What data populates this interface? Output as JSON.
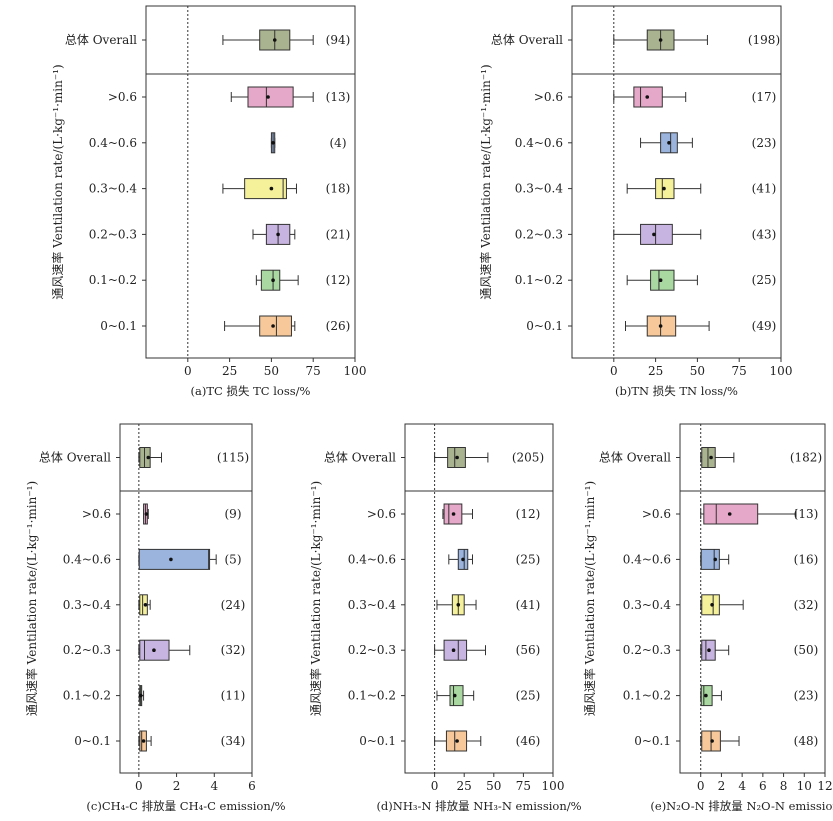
{
  "chart_data": [
    {
      "panel": "a",
      "type": "box",
      "xlabel": "(a)TC 损失 TC loss/%",
      "ylabel": "通风速率 Ventilation rate/(L·kg⁻¹·min⁻¹)",
      "xlim": [
        -25,
        100
      ],
      "xticks": [
        "0",
        "25",
        "50",
        "75",
        "100"
      ],
      "xtick_values": [
        0,
        25,
        50,
        75,
        100
      ],
      "reference_line": 0,
      "categories": [
        "总体 Overall",
        ">0.6",
        "0.4~0.6",
        "0.3~0.4",
        "0.2~0.3",
        "0.1~0.2",
        "0~0.1"
      ],
      "boxes": [
        {
          "q1": 43,
          "median": 52,
          "q3": 61,
          "whisker_low": 21,
          "whisker_high": 75,
          "mean": 52,
          "n": "(94)",
          "color": "#a9b38f"
        },
        {
          "q1": 36,
          "median": 47,
          "q3": 63,
          "whisker_low": 26,
          "whisker_high": 75,
          "mean": 48,
          "n": "(13)",
          "color": "#e6a8c8"
        },
        {
          "q1": 50,
          "median": 51,
          "q3": 52,
          "whisker_low": 50,
          "whisker_high": 52,
          "mean": 51,
          "n": "(4)",
          "color": "#9ab4de"
        },
        {
          "q1": 34,
          "median": 57,
          "q3": 59,
          "whisker_low": 21,
          "whisker_high": 65,
          "mean": 50,
          "n": "(18)",
          "color": "#f5f09a"
        },
        {
          "q1": 47,
          "median": 54,
          "q3": 61,
          "whisker_low": 39,
          "whisker_high": 64,
          "mean": 54,
          "n": "(21)",
          "color": "#c8b4e0"
        },
        {
          "q1": 44,
          "median": 51,
          "q3": 55,
          "whisker_low": 41,
          "whisker_high": 66,
          "mean": 51,
          "n": "(12)",
          "color": "#a9d8a1"
        },
        {
          "q1": 43,
          "median": 53,
          "q3": 62,
          "whisker_low": 22,
          "whisker_high": 64,
          "mean": 51,
          "n": "(26)",
          "color": "#f7c99a"
        }
      ]
    },
    {
      "panel": "b",
      "type": "box",
      "xlabel": "(b)TN 损失 TN loss/%",
      "ylabel": "通风速率 Ventilation rate/(L·kg⁻¹·min⁻¹)",
      "xlim": [
        -25,
        100
      ],
      "xticks": [
        "0",
        "25",
        "50",
        "75",
        "100"
      ],
      "xtick_values": [
        0,
        25,
        50,
        75,
        100
      ],
      "reference_line": 0,
      "categories": [
        "总体 Overall",
        ">0.6",
        "0.4~0.6",
        "0.3~0.4",
        "0.2~0.3",
        "0.1~0.2",
        "0~0.1"
      ],
      "boxes": [
        {
          "q1": 20,
          "median": 28,
          "q3": 36,
          "whisker_low": 0,
          "whisker_high": 56,
          "mean": 28,
          "n": "(198)",
          "color": "#a9b38f"
        },
        {
          "q1": 12,
          "median": 16,
          "q3": 29,
          "whisker_low": 0,
          "whisker_high": 43,
          "mean": 20,
          "n": "(17)",
          "color": "#e6a8c8"
        },
        {
          "q1": 28,
          "median": 34,
          "q3": 38,
          "whisker_low": 16,
          "whisker_high": 47,
          "mean": 33,
          "n": "(23)",
          "color": "#9ab4de"
        },
        {
          "q1": 25,
          "median": 29,
          "q3": 36,
          "whisker_low": 8,
          "whisker_high": 52,
          "mean": 30,
          "n": "(41)",
          "color": "#f5f09a"
        },
        {
          "q1": 16,
          "median": 25,
          "q3": 35,
          "whisker_low": 0,
          "whisker_high": 52,
          "mean": 24,
          "n": "(43)",
          "color": "#c8b4e0"
        },
        {
          "q1": 22,
          "median": 27,
          "q3": 36,
          "whisker_low": 8,
          "whisker_high": 50,
          "mean": 28,
          "n": "(25)",
          "color": "#a9d8a1"
        },
        {
          "q1": 20,
          "median": 28,
          "q3": 37,
          "whisker_low": 7,
          "whisker_high": 57,
          "mean": 28,
          "n": "(49)",
          "color": "#f7c99a"
        }
      ]
    },
    {
      "panel": "c",
      "type": "box",
      "xlabel": "(c)CH₄-C 排放量 CH₄-C emission/%",
      "ylabel": "通风速率 Ventilation rate/(L·kg⁻¹·min⁻¹)",
      "xlim": [
        -1,
        6
      ],
      "xticks": [
        "0",
        "2",
        "4",
        "6"
      ],
      "xtick_values": [
        0,
        2,
        4,
        6
      ],
      "reference_line": 0,
      "categories": [
        "总体 Overall",
        ">0.6",
        "0.4~0.6",
        "0.3~0.4",
        "0.2~0.3",
        "0.1~0.2",
        "0~0.1"
      ],
      "boxes": [
        {
          "q1": 0.05,
          "median": 0.3,
          "q3": 0.6,
          "whisker_low": 0,
          "whisker_high": 1.2,
          "mean": 0.5,
          "n": "(115)",
          "color": "#a9b38f"
        },
        {
          "q1": 0.25,
          "median": 0.35,
          "q3": 0.45,
          "whisker_low": 0.25,
          "whisker_high": 0.5,
          "mean": 0.4,
          "n": "(9)",
          "color": "#e6a8c8"
        },
        {
          "q1": 0.02,
          "median": 3.7,
          "q3": 3.75,
          "whisker_low": 0,
          "whisker_high": 4.1,
          "mean": 1.7,
          "n": "(5)",
          "color": "#9ab4de"
        },
        {
          "q1": 0.05,
          "median": 0.2,
          "q3": 0.45,
          "whisker_low": 0,
          "whisker_high": 0.6,
          "mean": 0.35,
          "n": "(24)",
          "color": "#f5f09a"
        },
        {
          "q1": 0.05,
          "median": 0.3,
          "q3": 1.6,
          "whisker_low": 0,
          "whisker_high": 2.7,
          "mean": 0.8,
          "n": "(32)",
          "color": "#c8b4e0"
        },
        {
          "q1": 0.05,
          "median": 0.1,
          "q3": 0.15,
          "whisker_low": 0.02,
          "whisker_high": 0.25,
          "mean": 0.1,
          "n": "(11)",
          "color": "#a9d8a1"
        },
        {
          "q1": 0.05,
          "median": 0.15,
          "q3": 0.4,
          "whisker_low": 0,
          "whisker_high": 0.65,
          "mean": 0.25,
          "n": "(34)",
          "color": "#f7c99a"
        }
      ]
    },
    {
      "panel": "d",
      "type": "box",
      "xlabel": "(d)NH₃-N 排放量 NH₃-N emission/%",
      "ylabel": "通风速率 Ventilation rate/(L·kg⁻¹·min⁻¹)",
      "xlim": [
        -25,
        100
      ],
      "xticks": [
        "0",
        "25",
        "50",
        "75",
        "100"
      ],
      "xtick_values": [
        0,
        25,
        50,
        75,
        100
      ],
      "reference_line": 0,
      "categories": [
        "总体 Overall",
        ">0.6",
        "0.4~0.6",
        "0.3~0.4",
        "0.2~0.3",
        "0.1~0.2",
        "0~0.1"
      ],
      "boxes": [
        {
          "q1": 11,
          "median": 17,
          "q3": 26,
          "whisker_low": 0,
          "whisker_high": 45,
          "mean": 19,
          "n": "(205)",
          "color": "#a9b38f"
        },
        {
          "q1": 8,
          "median": 12,
          "q3": 23,
          "whisker_low": 7,
          "whisker_high": 32,
          "mean": 16,
          "n": "(12)",
          "color": "#e6a8c8"
        },
        {
          "q1": 20,
          "median": 25,
          "q3": 28,
          "whisker_low": 12,
          "whisker_high": 32,
          "mean": 24,
          "n": "(25)",
          "color": "#9ab4de"
        },
        {
          "q1": 15,
          "median": 20,
          "q3": 25,
          "whisker_low": 2,
          "whisker_high": 35,
          "mean": 20,
          "n": "(41)",
          "color": "#f5f09a"
        },
        {
          "q1": 8,
          "median": 20,
          "q3": 27,
          "whisker_low": 0,
          "whisker_high": 43,
          "mean": 16,
          "n": "(56)",
          "color": "#c8b4e0"
        },
        {
          "q1": 13,
          "median": 16,
          "q3": 24,
          "whisker_low": 2,
          "whisker_high": 33,
          "mean": 17,
          "n": "(25)",
          "color": "#a9d8a1"
        },
        {
          "q1": 10,
          "median": 17,
          "q3": 27,
          "whisker_low": 0,
          "whisker_high": 39,
          "mean": 19,
          "n": "(46)",
          "color": "#f7c99a"
        }
      ]
    },
    {
      "panel": "e",
      "type": "box",
      "xlabel": "(e)N₂O-N 排放量 N₂O-N emission/%",
      "ylabel": "通风速率 Ventilation rate/(L·kg⁻¹·min⁻¹)",
      "xlim": [
        -2,
        12
      ],
      "xticks": [
        "0",
        "2",
        "4",
        "6",
        "8",
        "10",
        "12"
      ],
      "xtick_values": [
        0,
        2,
        4,
        6,
        8,
        10,
        12
      ],
      "reference_line": 0,
      "categories": [
        "总体 Overall",
        ">0.6",
        "0.4~0.6",
        "0.3~0.4",
        "0.2~0.3",
        "0.1~0.2",
        "0~0.1"
      ],
      "boxes": [
        {
          "q1": 0.1,
          "median": 0.7,
          "q3": 1.4,
          "whisker_low": 0,
          "whisker_high": 3.2,
          "mean": 1.0,
          "n": "(182)",
          "color": "#a9b38f"
        },
        {
          "q1": 0.3,
          "median": 1.5,
          "q3": 5.5,
          "whisker_low": 0,
          "whisker_high": 9.2,
          "mean": 2.8,
          "n": "(13)",
          "color": "#e6a8c8"
        },
        {
          "q1": 0.05,
          "median": 1.3,
          "q3": 1.8,
          "whisker_low": 0,
          "whisker_high": 2.7,
          "mean": 1.4,
          "n": "(16)",
          "color": "#9ab4de"
        },
        {
          "q1": 0.1,
          "median": 1.2,
          "q3": 1.8,
          "whisker_low": 0,
          "whisker_high": 4.1,
          "mean": 1.1,
          "n": "(32)",
          "color": "#f5f09a"
        },
        {
          "q1": 0.1,
          "median": 0.5,
          "q3": 1.4,
          "whisker_low": 0,
          "whisker_high": 2.7,
          "mean": 0.8,
          "n": "(50)",
          "color": "#c8b4e0"
        },
        {
          "q1": 0.05,
          "median": 0.3,
          "q3": 1.1,
          "whisker_low": 0,
          "whisker_high": 2.0,
          "mean": 0.5,
          "n": "(23)",
          "color": "#a9d8a1"
        },
        {
          "q1": 0.1,
          "median": 1.0,
          "q3": 1.9,
          "whisker_low": 0,
          "whisker_high": 3.7,
          "mean": 1.1,
          "n": "(48)",
          "color": "#f7c99a"
        }
      ]
    }
  ]
}
